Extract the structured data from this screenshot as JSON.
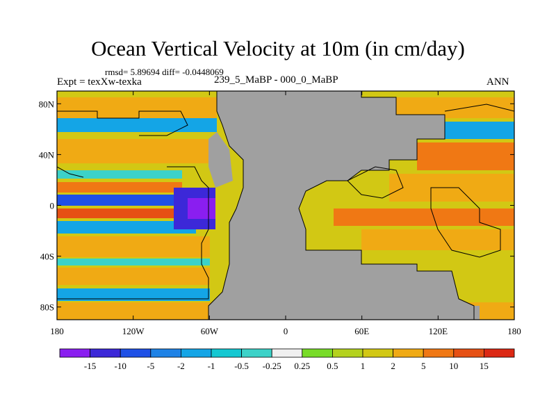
{
  "title": "Ocean Vertical Velocity at 10m (in cm/day)",
  "stats": "rmsd= 5.89694 diff= -0.0448069",
  "expt": "Expt = texXw-texka",
  "subtitle": "239_5_MaBP - 000_0_MaBP",
  "season": "ANN",
  "lat_ticks": [
    "80N",
    "40N",
    "0",
    "40S",
    "80S"
  ],
  "lon_ticks": [
    "180",
    "120W",
    "60W",
    "0",
    "60E",
    "120E",
    "180"
  ],
  "colorbar": {
    "labels": [
      "-15",
      "-10",
      "-5",
      "-2",
      "-1",
      "-0.5",
      "-0.25",
      "0.25",
      "0.5",
      "1",
      "2",
      "5",
      "10",
      "15"
    ],
    "colors": [
      "#8a1ef0",
      "#3c28d8",
      "#1e50e6",
      "#1e82e6",
      "#14a5e6",
      "#14c8d2",
      "#3cd2c8",
      "#f0f0f0",
      "#78dc28",
      "#b4d21e",
      "#d2c814",
      "#f0aa14",
      "#f07814",
      "#e65014",
      "#dc2814"
    ]
  },
  "land_color": "#a0a0a0"
}
